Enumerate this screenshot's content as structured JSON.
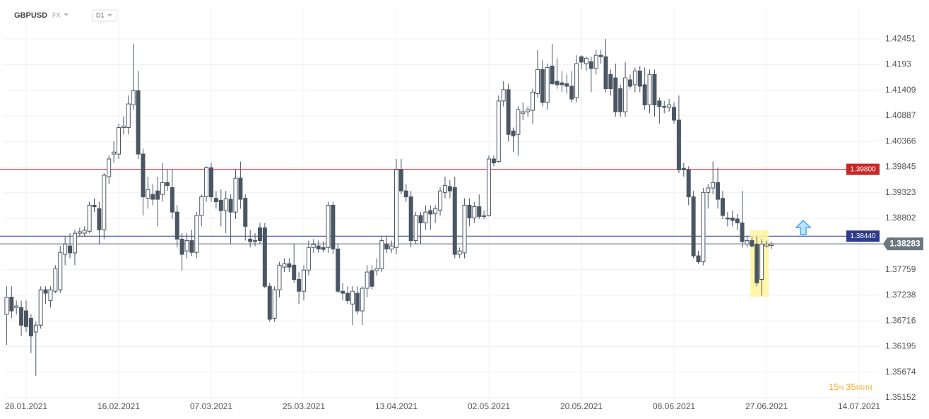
{
  "chart_data": {
    "type": "candlestick",
    "symbol": "GBPUSD",
    "market": "FX",
    "timeframe": "D1",
    "timer": {
      "hours": "15",
      "hours_unit": "ч",
      "minutes": "35",
      "minutes_unit": "мин"
    },
    "xlim": [
      -4.64,
      175.2
    ],
    "xticks": [
      {
        "value": 0,
        "label": "28.01.2021"
      },
      {
        "value": 19,
        "label": "16.02.2021"
      },
      {
        "value": 38,
        "label": "07.03.2021"
      },
      {
        "value": 57,
        "label": "25.03.2021"
      },
      {
        "value": 76,
        "label": "13.04.2021"
      },
      {
        "value": 95,
        "label": "02.05.2021"
      },
      {
        "value": 114,
        "label": "20.05.2021"
      },
      {
        "value": 133,
        "label": "08.06.2021"
      },
      {
        "value": 152,
        "label": "27.06.2021"
      },
      {
        "value": 171,
        "label": "14.07.2021"
      }
    ],
    "ylim": [
      1.3498,
      1.431
    ],
    "yticks": [
      1.42451,
      1.4193,
      1.41409,
      1.40887,
      1.40366,
      1.39845,
      1.39323,
      1.38802,
      1.37759,
      1.37238,
      1.36716,
      1.36195,
      1.35674,
      1.35152
    ],
    "grid": true,
    "levels": [
      {
        "value": 1.398,
        "label": "1.39800",
        "color": "#c62828"
      },
      {
        "value": 1.3844,
        "label": "1.38440",
        "color": "#2e3a8c"
      }
    ],
    "last_price": 1.38283,
    "up_color": "#ffffff",
    "down_color": "#4a5663",
    "wick_color": "#4a5663",
    "series": [
      {
        "x": [
          -4,
          -3,
          -2,
          -1,
          0,
          1,
          2,
          3,
          4,
          5,
          6,
          7,
          8,
          9,
          10,
          11,
          12,
          13,
          14,
          15,
          16,
          17,
          18,
          19,
          20,
          21,
          22,
          23,
          24,
          25,
          26,
          27,
          28,
          29,
          30,
          31,
          32,
          33,
          34,
          35,
          36,
          37,
          38,
          39,
          40,
          41,
          42,
          43,
          44,
          45,
          46,
          47,
          48,
          49,
          50,
          51,
          52,
          53,
          54,
          55,
          56,
          57,
          58,
          59,
          60,
          61,
          62,
          63,
          64,
          65,
          66,
          67,
          68,
          69,
          70,
          71,
          72,
          73,
          74,
          75,
          76,
          77,
          78,
          79,
          80,
          81,
          82,
          83,
          84,
          85,
          86,
          87,
          88,
          89,
          90,
          91,
          92,
          93,
          94,
          95,
          96,
          97,
          98,
          99,
          100,
          101,
          102,
          103,
          104,
          105,
          106,
          107,
          108,
          109,
          110,
          111,
          112,
          113,
          114,
          115,
          116,
          117,
          118,
          119,
          120,
          121,
          122,
          123,
          124,
          125,
          126,
          127,
          128,
          129,
          130,
          131,
          132,
          133,
          134,
          135,
          136,
          137,
          138,
          139,
          140,
          141,
          142,
          143,
          144,
          145,
          146,
          147,
          148,
          149,
          150,
          151,
          152,
          153
        ],
        "open": [
          1.3685,
          1.372,
          1.3699,
          1.3699,
          1.3692,
          1.3677,
          1.3649,
          1.3663,
          1.3735,
          1.3713,
          1.3732,
          1.3735,
          1.3807,
          1.3824,
          1.381,
          1.385,
          1.385,
          1.3854,
          1.3907,
          1.39,
          1.3857,
          1.3965,
          1.4011,
          1.4011,
          1.4065,
          1.4065,
          1.4111,
          1.414,
          1.4011,
          1.3921,
          1.3929,
          1.3936,
          1.3929,
          1.3953,
          1.3943,
          1.3893,
          1.3838,
          1.3814,
          1.3835,
          1.3811,
          1.3886,
          1.3924,
          1.3983,
          1.3921,
          1.3917,
          1.3896,
          1.3919,
          1.3893,
          1.3962,
          1.3921,
          1.3838,
          1.3834,
          1.3861,
          1.3861,
          1.3742,
          1.3677,
          1.3735,
          1.3781,
          1.3788,
          1.3785,
          1.3756,
          1.3732,
          1.3775,
          1.3821,
          1.3824,
          1.3821,
          1.3821,
          1.3907,
          1.3818,
          1.3732,
          1.3728,
          1.3706,
          1.3728,
          1.3692,
          1.3738,
          1.3774,
          1.3774,
          1.3778,
          1.3828,
          1.3818,
          1.3821,
          1.3979,
          1.3936,
          1.3924,
          1.3835,
          1.3886,
          1.3871,
          1.3896,
          1.389,
          1.3897,
          1.3933,
          1.3945,
          1.3943,
          1.3807,
          1.381,
          1.3907,
          1.3881,
          1.3904,
          1.3884,
          1.3886,
          1.4001,
          1.3996,
          1.4119,
          1.4142,
          1.4058,
          1.4051,
          1.4094,
          1.4097,
          1.41,
          1.4134,
          1.4183,
          1.4116,
          1.419,
          1.4159,
          1.4156,
          1.4154,
          1.4149,
          1.4126,
          1.4209,
          1.4195,
          1.4199,
          1.4185,
          1.4212,
          1.4209,
          1.4173,
          1.4166,
          1.4144,
          1.4097,
          1.4162,
          1.4152,
          1.418,
          1.4152,
          1.4111,
          1.4173,
          1.4119,
          1.4108,
          1.4106,
          1.4106,
          1.408,
          1.3982,
          1.3979,
          1.3924,
          1.3804,
          1.3792,
          1.3933,
          1.3942,
          1.3953,
          1.3921,
          1.3881,
          1.3881,
          1.3879,
          1.3871,
          1.3828,
          1.3835,
          1.3828,
          1.3756,
          1.3824,
          1.3825
        ],
        "high": [
          1.3742,
          1.3742,
          1.3713,
          1.3713,
          1.3713,
          1.3685,
          1.367,
          1.3742,
          1.3742,
          1.3742,
          1.3785,
          1.3824,
          1.3843,
          1.385,
          1.3857,
          1.3861,
          1.3864,
          1.3914,
          1.3921,
          1.3914,
          1.3972,
          1.4008,
          1.4037,
          1.4073,
          1.4087,
          1.413,
          1.4235,
          1.418,
          1.4022,
          1.3965,
          1.395,
          1.3965,
          1.3993,
          1.3979,
          1.3979,
          1.3907,
          1.385,
          1.385,
          1.3857,
          1.3893,
          1.3929,
          1.3986,
          1.3993,
          1.3936,
          1.3939,
          1.3936,
          1.3929,
          1.3979,
          1.3996,
          1.3929,
          1.3857,
          1.385,
          1.3871,
          1.3871,
          1.3749,
          1.3742,
          1.3792,
          1.3799,
          1.3799,
          1.3828,
          1.3771,
          1.3785,
          1.3835,
          1.3838,
          1.3835,
          1.3833,
          1.3914,
          1.3914,
          1.3828,
          1.3749,
          1.3742,
          1.3742,
          1.3742,
          1.3742,
          1.3785,
          1.3785,
          1.3799,
          1.3843,
          1.3843,
          1.3835,
          1.4001,
          1.4001,
          1.395,
          1.3936,
          1.3893,
          1.3893,
          1.3907,
          1.3907,
          1.3907,
          1.3943,
          1.3965,
          1.3958,
          1.3965,
          1.3821,
          1.3921,
          1.3921,
          1.3914,
          1.3929,
          1.3896,
          1.4008,
          1.4008,
          1.413,
          1.4159,
          1.4154,
          1.4065,
          1.4108,
          1.4116,
          1.4108,
          1.4144,
          1.4223,
          1.4202,
          1.4195,
          1.4235,
          1.4206,
          1.418,
          1.4173,
          1.418,
          1.4212,
          1.4212,
          1.4209,
          1.4209,
          1.4223,
          1.4223,
          1.4245,
          1.4183,
          1.4195,
          1.4152,
          1.4198,
          1.4173,
          1.4187,
          1.419,
          1.4187,
          1.4183,
          1.4183,
          1.4126,
          1.4119,
          1.4123,
          1.4116,
          1.413,
          1.3993,
          1.3986,
          1.3936,
          1.3814,
          1.3942,
          1.395,
          1.3996,
          1.3983,
          1.3936,
          1.3893,
          1.3896,
          1.3889,
          1.3936,
          1.3843,
          1.3843,
          1.3843,
          1.3838,
          1.3835,
          1.3833
        ],
        "low": [
          1.3623,
          1.3677,
          1.3685,
          1.3641,
          1.3649,
          1.3606,
          1.356,
          1.3656,
          1.3706,
          1.3699,
          1.3728,
          1.3728,
          1.3785,
          1.3799,
          1.3785,
          1.3843,
          1.3843,
          1.385,
          1.3893,
          1.3828,
          1.3838,
          1.395,
          1.3993,
          1.4001,
          1.4051,
          1.4051,
          1.4101,
          1.4001,
          1.3886,
          1.39,
          1.3907,
          1.3864,
          1.3914,
          1.3936,
          1.3879,
          1.3821,
          1.3774,
          1.3799,
          1.3804,
          1.3799,
          1.3864,
          1.3914,
          1.3914,
          1.39,
          1.3864,
          1.385,
          1.3828,
          1.3879,
          1.39,
          1.3835,
          1.3821,
          1.3824,
          1.3828,
          1.3738,
          1.367,
          1.367,
          1.372,
          1.3771,
          1.3771,
          1.3749,
          1.3706,
          1.3713,
          1.3764,
          1.381,
          1.381,
          1.3811,
          1.381,
          1.3807,
          1.3728,
          1.3713,
          1.3706,
          1.3663,
          1.3685,
          1.3663,
          1.372,
          1.3735,
          1.3764,
          1.3771,
          1.381,
          1.381,
          1.3807,
          1.3929,
          1.3914,
          1.3821,
          1.3828,
          1.3828,
          1.3857,
          1.3857,
          1.3871,
          1.3886,
          1.3921,
          1.3921,
          1.3799,
          1.3799,
          1.3799,
          1.3864,
          1.3871,
          1.3879,
          1.3879,
          1.3884,
          1.3986,
          1.3993,
          1.4108,
          1.4037,
          1.4015,
          1.4008,
          1.408,
          1.4087,
          1.4073,
          1.4126,
          1.4108,
          1.4101,
          1.4152,
          1.4144,
          1.4137,
          1.4134,
          1.4116,
          1.4116,
          1.4183,
          1.418,
          1.4137,
          1.4173,
          1.4195,
          1.4137,
          1.413,
          1.4087,
          1.4087,
          1.4087,
          1.4144,
          1.4137,
          1.4137,
          1.4101,
          1.4094,
          1.4087,
          1.4073,
          1.4094,
          1.4097,
          1.4073,
          1.3972,
          1.3965,
          1.3907,
          1.3799,
          1.3788,
          1.3785,
          1.39,
          1.3929,
          1.39,
          1.3879,
          1.3864,
          1.3864,
          1.3857,
          1.3821,
          1.3821,
          1.3821,
          1.3742,
          1.3723,
          1.3821,
          1.3818
        ],
        "close": [
          1.372,
          1.3692,
          1.3702,
          1.3663,
          1.366,
          1.3641,
          1.3663,
          1.3735,
          1.3728,
          1.3735,
          1.3778,
          1.3811,
          1.3828,
          1.381,
          1.385,
          1.3853,
          1.3856,
          1.3907,
          1.3904,
          1.3857,
          1.3968,
          1.4001,
          1.4015,
          1.4065,
          1.4068,
          1.4113,
          1.414,
          1.4011,
          1.3924,
          1.3939,
          1.3919,
          1.3919,
          1.3953,
          1.3947,
          1.3893,
          1.3838,
          1.3807,
          1.3835,
          1.3811,
          1.3886,
          1.3924,
          1.3983,
          1.3924,
          1.3914,
          1.3896,
          1.392,
          1.3893,
          1.3962,
          1.3919,
          1.3864,
          1.3833,
          1.3835,
          1.3835,
          1.3742,
          1.3675,
          1.3735,
          1.3785,
          1.3788,
          1.3781,
          1.3756,
          1.3732,
          1.3775,
          1.3821,
          1.3827,
          1.3818,
          1.3817,
          1.3907,
          1.3818,
          1.3732,
          1.3728,
          1.3713,
          1.3732,
          1.3692,
          1.3738,
          1.3771,
          1.3742,
          1.3778,
          1.3835,
          1.3818,
          1.3824,
          1.3979,
          1.3936,
          1.3924,
          1.3835,
          1.3886,
          1.3871,
          1.3893,
          1.3889,
          1.39,
          1.3936,
          1.3947,
          1.3936,
          1.3807,
          1.3814,
          1.3907,
          1.3881,
          1.3904,
          1.3884,
          1.3886,
          1.4001,
          1.3993,
          1.4119,
          1.4142,
          1.4051,
          1.4048,
          1.4101,
          1.4097,
          1.4101,
          1.4137,
          1.4183,
          1.4116,
          1.4187,
          1.4154,
          1.4152,
          1.4152,
          1.4149,
          1.4123,
          1.4195,
          1.4198,
          1.4206,
          1.4185,
          1.4212,
          1.4209,
          1.4144,
          1.4144,
          1.4097,
          1.4097,
          1.4166,
          1.4149,
          1.418,
          1.4149,
          1.4111,
          1.4173,
          1.4111,
          1.4108,
          1.4106,
          1.4111,
          1.408,
          1.3979,
          1.3979,
          1.3924,
          1.3804,
          1.3792,
          1.3933,
          1.3942,
          1.3953,
          1.3919,
          1.3886,
          1.3879,
          1.3876,
          1.3871,
          1.3833,
          1.3835,
          1.3824,
          1.3749,
          1.3828,
          1.3828,
          1.3828
        ]
      }
    ]
  }
}
